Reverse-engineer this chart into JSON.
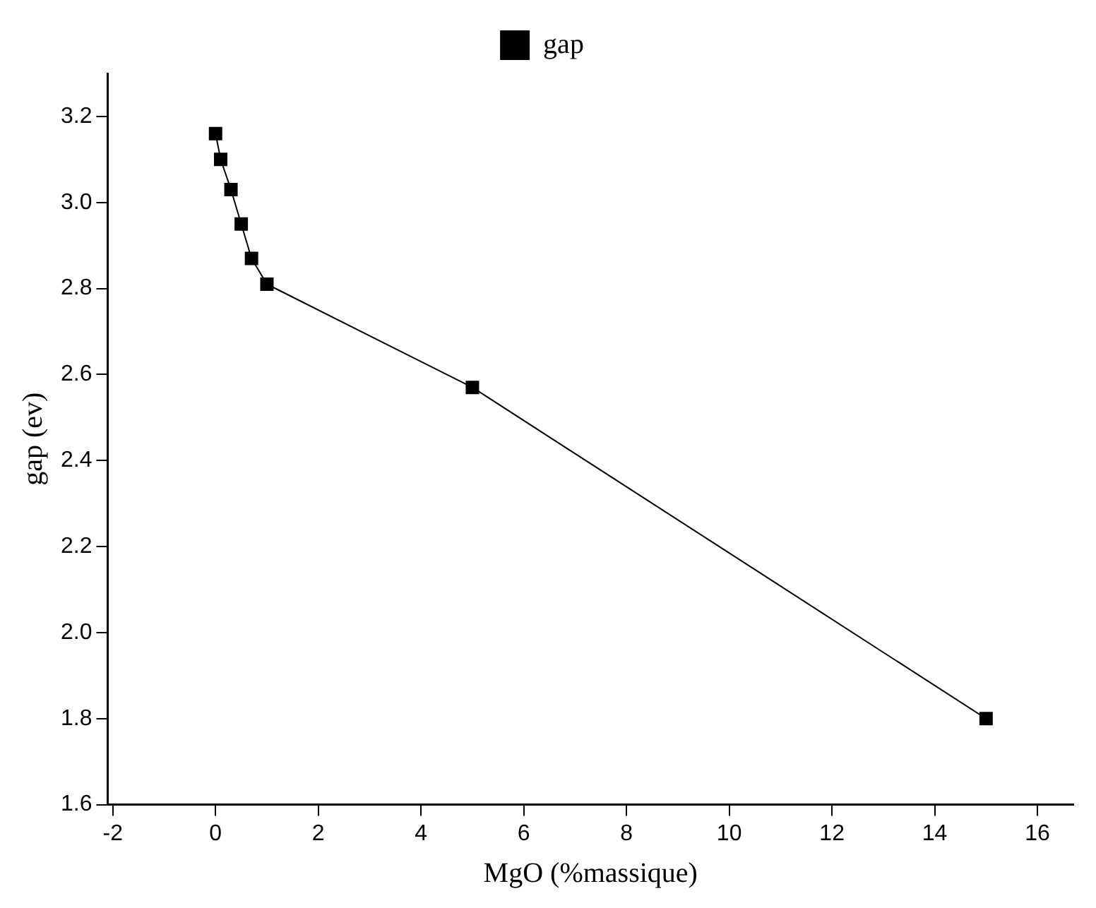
{
  "chart_data": {
    "type": "line",
    "xlabel": "MgO (%massique)",
    "ylabel": "gap (ev)",
    "x": [
      0,
      0.1,
      0.3,
      0.5,
      0.7,
      1,
      5,
      15
    ],
    "series": [
      {
        "name": "gap",
        "color": "#000000",
        "values": [
          3.16,
          3.1,
          3.03,
          2.95,
          2.87,
          2.81,
          2.57,
          1.8
        ]
      }
    ],
    "xlim": [
      -2.1,
      16.7
    ],
    "xticks": [
      -2,
      0,
      2,
      4,
      6,
      8,
      10,
      12,
      14,
      16
    ],
    "ylim": [
      1.6,
      3.3
    ],
    "yticks": [
      {
        "value": 1.6,
        "label": "1.6"
      },
      {
        "value": 1.8,
        "label": "1.8"
      },
      {
        "value": 2.0,
        "label": "2.0"
      },
      {
        "value": 2.2,
        "label": "2.2"
      },
      {
        "value": 2.4,
        "label": "2.4"
      },
      {
        "value": 2.6,
        "label": "2.6"
      },
      {
        "value": 2.8,
        "label": "2.8"
      },
      {
        "value": 3.0,
        "label": "3.0"
      },
      {
        "value": 3.2,
        "label": "3.2"
      }
    ],
    "grid": false,
    "legend": "top",
    "marker": "square",
    "line_style": "solid"
  }
}
